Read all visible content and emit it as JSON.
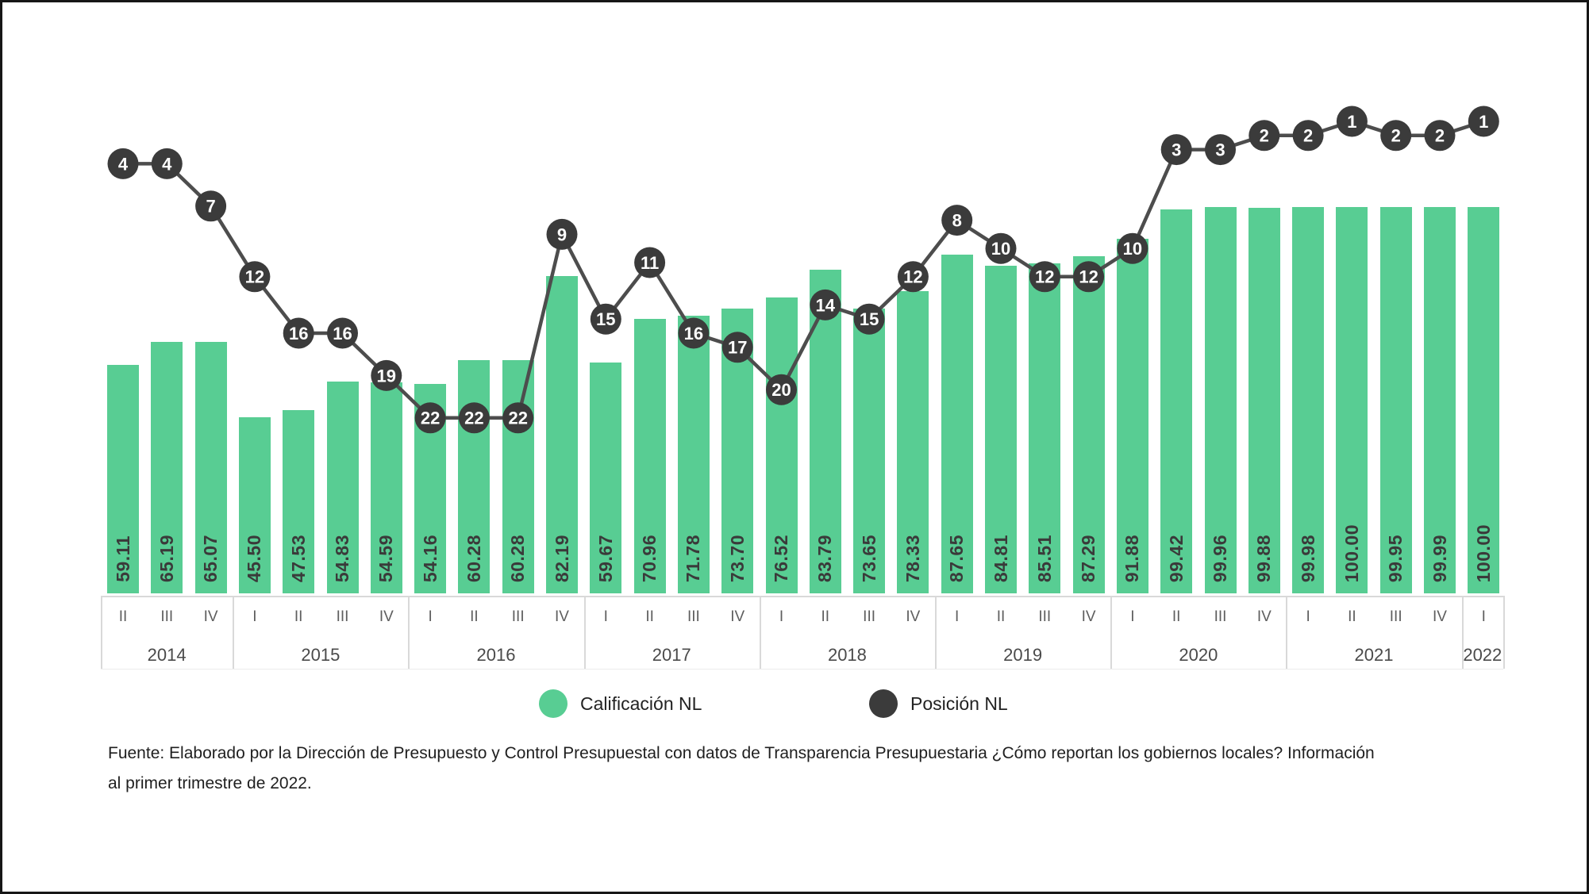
{
  "chart_data": {
    "type": "bar",
    "title": "",
    "xlabel": "",
    "ylabel": "",
    "grid": false,
    "legend_position": "bottom",
    "bar_axis_range": [
      0,
      100
    ],
    "position_axis_range": [
      1,
      22
    ],
    "position_axis_inverted": true,
    "year_groups": [
      {
        "year": "2014",
        "quarters": [
          "II",
          "III",
          "IV"
        ]
      },
      {
        "year": "2015",
        "quarters": [
          "I",
          "II",
          "III",
          "IV"
        ]
      },
      {
        "year": "2016",
        "quarters": [
          "I",
          "II",
          "III",
          "IV"
        ]
      },
      {
        "year": "2017",
        "quarters": [
          "I",
          "II",
          "III",
          "IV"
        ]
      },
      {
        "year": "2018",
        "quarters": [
          "I",
          "II",
          "III",
          "IV"
        ]
      },
      {
        "year": "2019",
        "quarters": [
          "I",
          "II",
          "III",
          "IV"
        ]
      },
      {
        "year": "2020",
        "quarters": [
          "I",
          "II",
          "III",
          "IV"
        ]
      },
      {
        "year": "2021",
        "quarters": [
          "I",
          "II",
          "III",
          "IV"
        ]
      },
      {
        "year": "2022",
        "quarters": [
          "I"
        ]
      }
    ],
    "series": [
      {
        "name": "Calificación NL",
        "type": "bar",
        "color": "#58CD93",
        "values": [
          59.11,
          65.19,
          65.07,
          45.5,
          47.53,
          54.83,
          54.59,
          54.16,
          60.28,
          60.28,
          82.19,
          59.67,
          70.96,
          71.78,
          73.7,
          76.52,
          83.79,
          73.65,
          78.33,
          87.65,
          84.81,
          85.51,
          87.29,
          91.88,
          99.42,
          99.96,
          99.88,
          99.98,
          100.0,
          99.95,
          99.99,
          100.0
        ]
      },
      {
        "name": "Posición NL",
        "type": "line",
        "color": "#3B3B3B",
        "values": [
          4,
          4,
          7,
          12,
          16,
          16,
          19,
          22,
          22,
          22,
          9,
          15,
          11,
          16,
          17,
          20,
          14,
          15,
          12,
          8,
          10,
          12,
          12,
          10,
          3,
          3,
          2,
          2,
          1,
          2,
          2,
          1
        ]
      }
    ]
  },
  "legend": {
    "item1_label": "Calificación NL",
    "item2_label": "Posición NL"
  },
  "source": {
    "line1": "Fuente: Elaborado por la Dirección de Presupuesto y Control Presupuestal con datos de Transparencia Presupuestaria ¿Cómo reportan los gobiernos locales? Información",
    "line2": "al primer trimestre de 2022."
  },
  "colors": {
    "bar": "#58CD93",
    "line": "#4D4D4D",
    "point_fill": "#3B3B3B",
    "point_text": "#FFFFFF",
    "bar_value_text": "#3A3A3A",
    "axis_line": "#D9D9D9"
  }
}
